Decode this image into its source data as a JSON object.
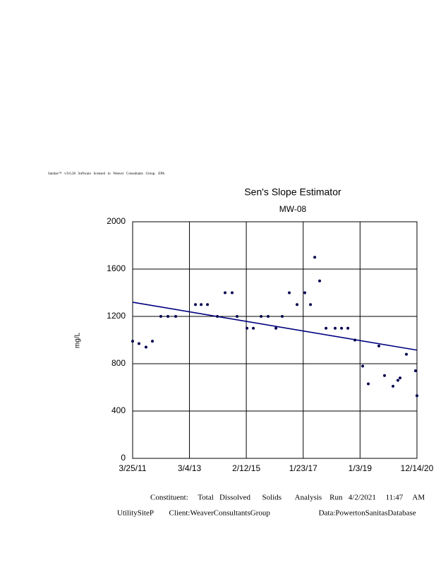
{
  "header": "Sanitas™   v.9.6.28   Software   licensed   to   Weaver   Consultants   Group.   EPA",
  "chart_data": {
    "type": "scatter",
    "title": "Sen's Slope Estimator",
    "subtitle": "MW-08",
    "y_label": "mg/L",
    "color": "#000050",
    "x": [
      "3/25/11",
      "6/12/11",
      "9/8/11",
      "11/27/11",
      "3/11/12",
      "6/8/12",
      "9/13/12",
      "5/18/13",
      "7/28/13",
      "10/15/13",
      "2/15/14",
      "5/23/14",
      "8/19/14",
      "10/20/14",
      "2/20/15",
      "5/11/15",
      "8/16/15",
      "11/12/15",
      "2/17/16",
      "5/6/16",
      "8/2/16",
      "11/7/16",
      "2/12/17",
      "4/24/17",
      "6/16/17",
      "8/16/17",
      "11/4/17",
      "2/26/18",
      "5/17/18",
      "8/4/18",
      "10/31/18",
      "2/5/19",
      "4/16/19",
      "8/26/19",
      "11/5/19",
      "2/19/20",
      "4/20/20",
      "5/17/20",
      "8/4/20",
      "11/26/20",
      "12/14/20"
    ],
    "values": [
      990,
      970,
      940,
      990,
      1200,
      1200,
      1200,
      1300,
      1300,
      1300,
      1200,
      1400,
      1400,
      1200,
      1100,
      1100,
      1200,
      1200,
      1100,
      1200,
      1400,
      1300,
      1400,
      1300,
      1700,
      1500,
      1100,
      1100,
      1100,
      1100,
      1000,
      780,
      630,
      950,
      700,
      610,
      660,
      680,
      880,
      740,
      530
    ],
    "trend_line": {
      "color": "#000080",
      "x": [
        "3/25/11",
        "12/14/20"
      ],
      "values": [
        1320,
        915
      ]
    },
    "xlim": [
      "3/25/11",
      "12/14/20"
    ],
    "xticks": [
      "3/25/11",
      "3/4/13",
      "2/12/15",
      "1/23/17",
      "1/3/19",
      "12/14/20"
    ],
    "ylim": [
      0,
      2000
    ],
    "yticks": [
      0,
      400,
      800,
      1200,
      1600,
      2000
    ],
    "grid": true
  },
  "footer": [
    "Constituent:     Total   Dissolved      Solids       Analysis    Run   4/2/2021     11:47     AM",
    "UtilitySiteP        Client:WeaverConsultantsGroup                         Data:PowertonSanitasDatabase"
  ]
}
